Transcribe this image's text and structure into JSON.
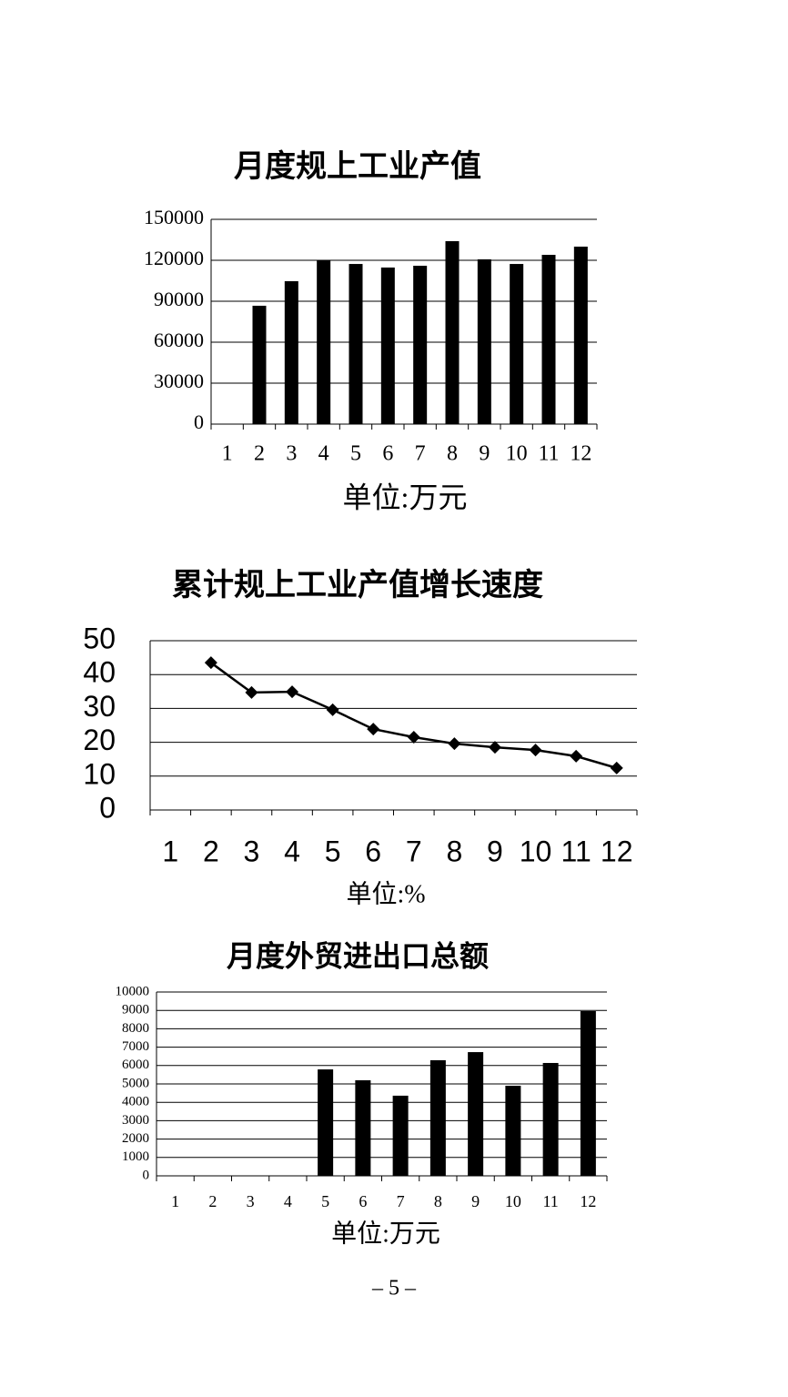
{
  "page_number": "– 5 –",
  "chart_data": [
    {
      "type": "bar",
      "title": "月度规上工业产值",
      "x_label": "单位:万元",
      "categories": [
        "1",
        "2",
        "3",
        "4",
        "5",
        "6",
        "7",
        "8",
        "9",
        "10",
        "11",
        "12"
      ],
      "values": [
        null,
        86700,
        104700,
        120000,
        117300,
        114700,
        116000,
        134000,
        120700,
        117300,
        124000,
        130000
      ],
      "color": "#000000",
      "ylim": [
        0,
        150000
      ],
      "yticks": [
        0,
        30000,
        60000,
        90000,
        120000,
        150000
      ],
      "grid": true
    },
    {
      "type": "line",
      "title": "累计规上工业产值增长速度",
      "x_label": "单位:%",
      "categories": [
        "1",
        "2",
        "3",
        "4",
        "5",
        "6",
        "7",
        "8",
        "9",
        "10",
        "11",
        "12"
      ],
      "values": [
        null,
        43.5,
        34.7,
        34.9,
        29.6,
        23.9,
        21.5,
        19.6,
        18.5,
        17.7,
        15.9,
        12.4
      ],
      "color": "#000000",
      "marker": "diamond",
      "ylim": [
        0,
        50
      ],
      "yticks": [
        0,
        10,
        20,
        30,
        40,
        50
      ],
      "grid": true
    },
    {
      "type": "bar",
      "title": "月度外贸进出口总额",
      "x_label": "单位:万元",
      "categories": [
        "1",
        "2",
        "3",
        "4",
        "5",
        "6",
        "7",
        "8",
        "9",
        "10",
        "11",
        "12"
      ],
      "values": [
        null,
        null,
        null,
        null,
        5790,
        5200,
        4360,
        6290,
        6730,
        4900,
        6140,
        8960
      ],
      "color": "#000000",
      "ylim": [
        0,
        10000
      ],
      "yticks": [
        0,
        1000,
        2000,
        3000,
        4000,
        5000,
        6000,
        7000,
        8000,
        9000,
        10000
      ],
      "grid": true
    }
  ]
}
